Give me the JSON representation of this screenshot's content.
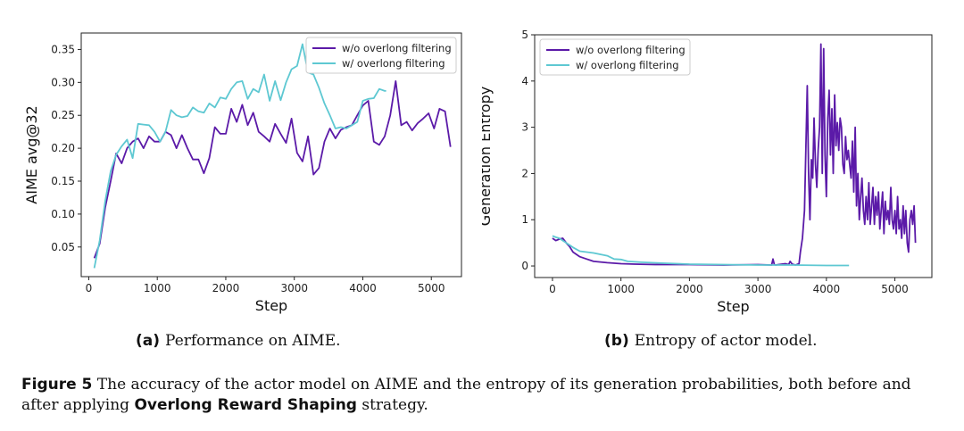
{
  "chart_data": [
    {
      "type": "line",
      "xlabel": "Step",
      "ylabel": "AIME avg@32",
      "xlim": [
        -110,
        5440
      ],
      "ylim": [
        0.005,
        0.375
      ],
      "xticks": [
        0,
        1000,
        2000,
        3000,
        4000,
        5000
      ],
      "yticks": [
        0.05,
        0.1,
        0.15,
        0.2,
        0.25,
        0.3,
        0.35
      ],
      "ytick_labels": [
        "0.05",
        "0.10",
        "0.15",
        "0.20",
        "0.25",
        "0.30",
        "0.35"
      ],
      "legend_position": "top-right",
      "series": [
        {
          "name": "w/o overlong filtering",
          "color": "#5b1aa8",
          "x": [
            80,
            160,
            240,
            320,
            400,
            480,
            560,
            640,
            720,
            800,
            880,
            960,
            1040,
            1120,
            1200,
            1280,
            1360,
            1440,
            1520,
            1600,
            1680,
            1760,
            1840,
            1920,
            2000,
            2080,
            2160,
            2240,
            2320,
            2400,
            2480,
            2560,
            2640,
            2720,
            2800,
            2880,
            2960,
            3040,
            3120,
            3200,
            3280,
            3360,
            3440,
            3520,
            3600,
            3680,
            3760,
            3840,
            3920,
            4000,
            4080,
            4160,
            4240,
            4320,
            4400,
            4480,
            4560,
            4640,
            4720,
            4800,
            4880,
            4960,
            5040,
            5120,
            5200,
            5280
          ],
          "y": [
            0.033,
            0.055,
            0.11,
            0.15,
            0.192,
            0.177,
            0.2,
            0.21,
            0.215,
            0.2,
            0.218,
            0.21,
            0.21,
            0.225,
            0.22,
            0.2,
            0.22,
            0.2,
            0.183,
            0.183,
            0.162,
            0.185,
            0.232,
            0.222,
            0.222,
            0.26,
            0.24,
            0.266,
            0.235,
            0.254,
            0.225,
            0.218,
            0.21,
            0.237,
            0.222,
            0.208,
            0.245,
            0.193,
            0.18,
            0.218,
            0.16,
            0.17,
            0.21,
            0.23,
            0.215,
            0.228,
            0.232,
            0.235,
            0.25,
            0.265,
            0.272,
            0.21,
            0.205,
            0.218,
            0.25,
            0.302,
            0.235,
            0.24,
            0.227,
            0.238,
            0.245,
            0.253,
            0.23,
            0.26,
            0.256,
            0.202
          ]
        },
        {
          "name": "w/ overlong filtering",
          "color": "#5ec8d2",
          "x": [
            80,
            160,
            240,
            320,
            400,
            480,
            560,
            640,
            720,
            800,
            880,
            960,
            1040,
            1120,
            1200,
            1280,
            1360,
            1440,
            1520,
            1600,
            1680,
            1760,
            1840,
            1920,
            2000,
            2080,
            2160,
            2240,
            2320,
            2400,
            2480,
            2560,
            2640,
            2720,
            2800,
            2880,
            2960,
            3040,
            3120,
            3200,
            3280,
            3360,
            3440,
            3520,
            3600,
            3680,
            3760,
            3840,
            3920,
            4000,
            4080,
            4160,
            4240,
            4320,
            4340
          ],
          "y": [
            0.018,
            0.06,
            0.12,
            0.165,
            0.19,
            0.203,
            0.213,
            0.185,
            0.237,
            0.236,
            0.235,
            0.225,
            0.21,
            0.225,
            0.258,
            0.25,
            0.247,
            0.249,
            0.262,
            0.256,
            0.254,
            0.268,
            0.262,
            0.277,
            0.275,
            0.29,
            0.3,
            0.302,
            0.275,
            0.29,
            0.285,
            0.312,
            0.272,
            0.302,
            0.273,
            0.3,
            0.32,
            0.325,
            0.358,
            0.315,
            0.312,
            0.292,
            0.268,
            0.25,
            0.23,
            0.232,
            0.23,
            0.235,
            0.24,
            0.272,
            0.275,
            0.276,
            0.29,
            0.287,
            0.287
          ]
        }
      ]
    },
    {
      "type": "line",
      "xlabel": "Step",
      "ylabel": "Generation Entropy",
      "xlim": [
        -260,
        5540
      ],
      "ylim": [
        -0.25,
        5.0
      ],
      "xticks": [
        0,
        1000,
        2000,
        3000,
        4000,
        5000
      ],
      "yticks": [
        0,
        1,
        2,
        3,
        4,
        5
      ],
      "ytick_labels": [
        "0",
        "1",
        "2",
        "3",
        "4",
        "5"
      ],
      "legend_position": "top-left",
      "series": [
        {
          "name": "w/o overlong filtering",
          "color": "#5b1aa8",
          "x": [
            0,
            50,
            100,
            150,
            200,
            250,
            300,
            400,
            500,
            600,
            800,
            1000,
            1200,
            1500,
            2000,
            2500,
            3000,
            3200,
            3220,
            3240,
            3260,
            3300,
            3400,
            3450,
            3470,
            3500,
            3550,
            3600,
            3620,
            3650,
            3680,
            3700,
            3720,
            3740,
            3760,
            3780,
            3800,
            3820,
            3840,
            3860,
            3880,
            3900,
            3920,
            3940,
            3960,
            3980,
            4000,
            4020,
            4040,
            4060,
            4080,
            4100,
            4120,
            4140,
            4160,
            4180,
            4200,
            4220,
            4240,
            4260,
            4280,
            4300,
            4320,
            4340,
            4360,
            4380,
            4400,
            4420,
            4440,
            4460,
            4480,
            4500,
            4520,
            4540,
            4560,
            4580,
            4600,
            4620,
            4640,
            4660,
            4680,
            4700,
            4720,
            4740,
            4760,
            4780,
            4800,
            4820,
            4840,
            4860,
            4880,
            4900,
            4920,
            4940,
            4960,
            4980,
            5000,
            5020,
            5040,
            5060,
            5080,
            5100,
            5120,
            5140,
            5160,
            5180,
            5200,
            5220,
            5240,
            5260,
            5280,
            5300
          ],
          "y": [
            0.6,
            0.55,
            0.58,
            0.6,
            0.5,
            0.42,
            0.3,
            0.2,
            0.15,
            0.1,
            0.07,
            0.05,
            0.04,
            0.03,
            0.03,
            0.02,
            0.03,
            0.02,
            0.15,
            0.03,
            0.02,
            0.03,
            0.05,
            0.03,
            0.1,
            0.04,
            0.02,
            0.05,
            0.3,
            0.6,
            1.2,
            2.5,
            3.9,
            2.0,
            1.0,
            2.3,
            1.9,
            3.2,
            2.2,
            1.7,
            2.5,
            3.0,
            4.8,
            2.0,
            4.7,
            2.4,
            1.5,
            3.2,
            3.8,
            2.4,
            3.4,
            2.0,
            3.7,
            2.6,
            3.1,
            2.5,
            3.2,
            3.0,
            2.2,
            2.0,
            2.8,
            2.3,
            2.5,
            2.2,
            1.9,
            2.7,
            1.6,
            3.0,
            1.3,
            2.0,
            1.0,
            1.5,
            1.9,
            1.2,
            0.9,
            1.5,
            1.0,
            1.8,
            0.9,
            1.3,
            1.7,
            0.9,
            1.5,
            1.1,
            1.6,
            0.8,
            1.2,
            1.6,
            0.7,
            1.4,
            1.0,
            1.2,
            0.9,
            1.7,
            1.0,
            0.8,
            1.2,
            0.7,
            1.5,
            0.8,
            1.0,
            0.6,
            1.3,
            0.7,
            1.2,
            0.5,
            0.3,
            1.0,
            1.2,
            0.9,
            1.3,
            0.5
          ]
        },
        {
          "name": "w/ overlong filtering",
          "color": "#5ec8d2",
          "x": [
            0,
            50,
            100,
            150,
            200,
            300,
            400,
            600,
            800,
            900,
            1000,
            1100,
            1300,
            1600,
            2000,
            2500,
            3000,
            3500,
            4000,
            4330
          ],
          "y": [
            0.65,
            0.62,
            0.6,
            0.55,
            0.5,
            0.4,
            0.32,
            0.28,
            0.22,
            0.15,
            0.14,
            0.1,
            0.08,
            0.06,
            0.04,
            0.03,
            0.02,
            0.02,
            0.01,
            0.01
          ]
        }
      ]
    }
  ],
  "captions": {
    "a_label": "(a)",
    "a_text": "Performance on AIME.",
    "b_label": "(b)",
    "b_text": "Entropy of actor model.",
    "figure_label": "Figure 5",
    "figure_text_1": "The accuracy of the actor model on AIME and the entropy of its generation probabilities, both before and after applying",
    "figure_bold": "Overlong Reward Shaping",
    "figure_text_2": "strategy."
  }
}
